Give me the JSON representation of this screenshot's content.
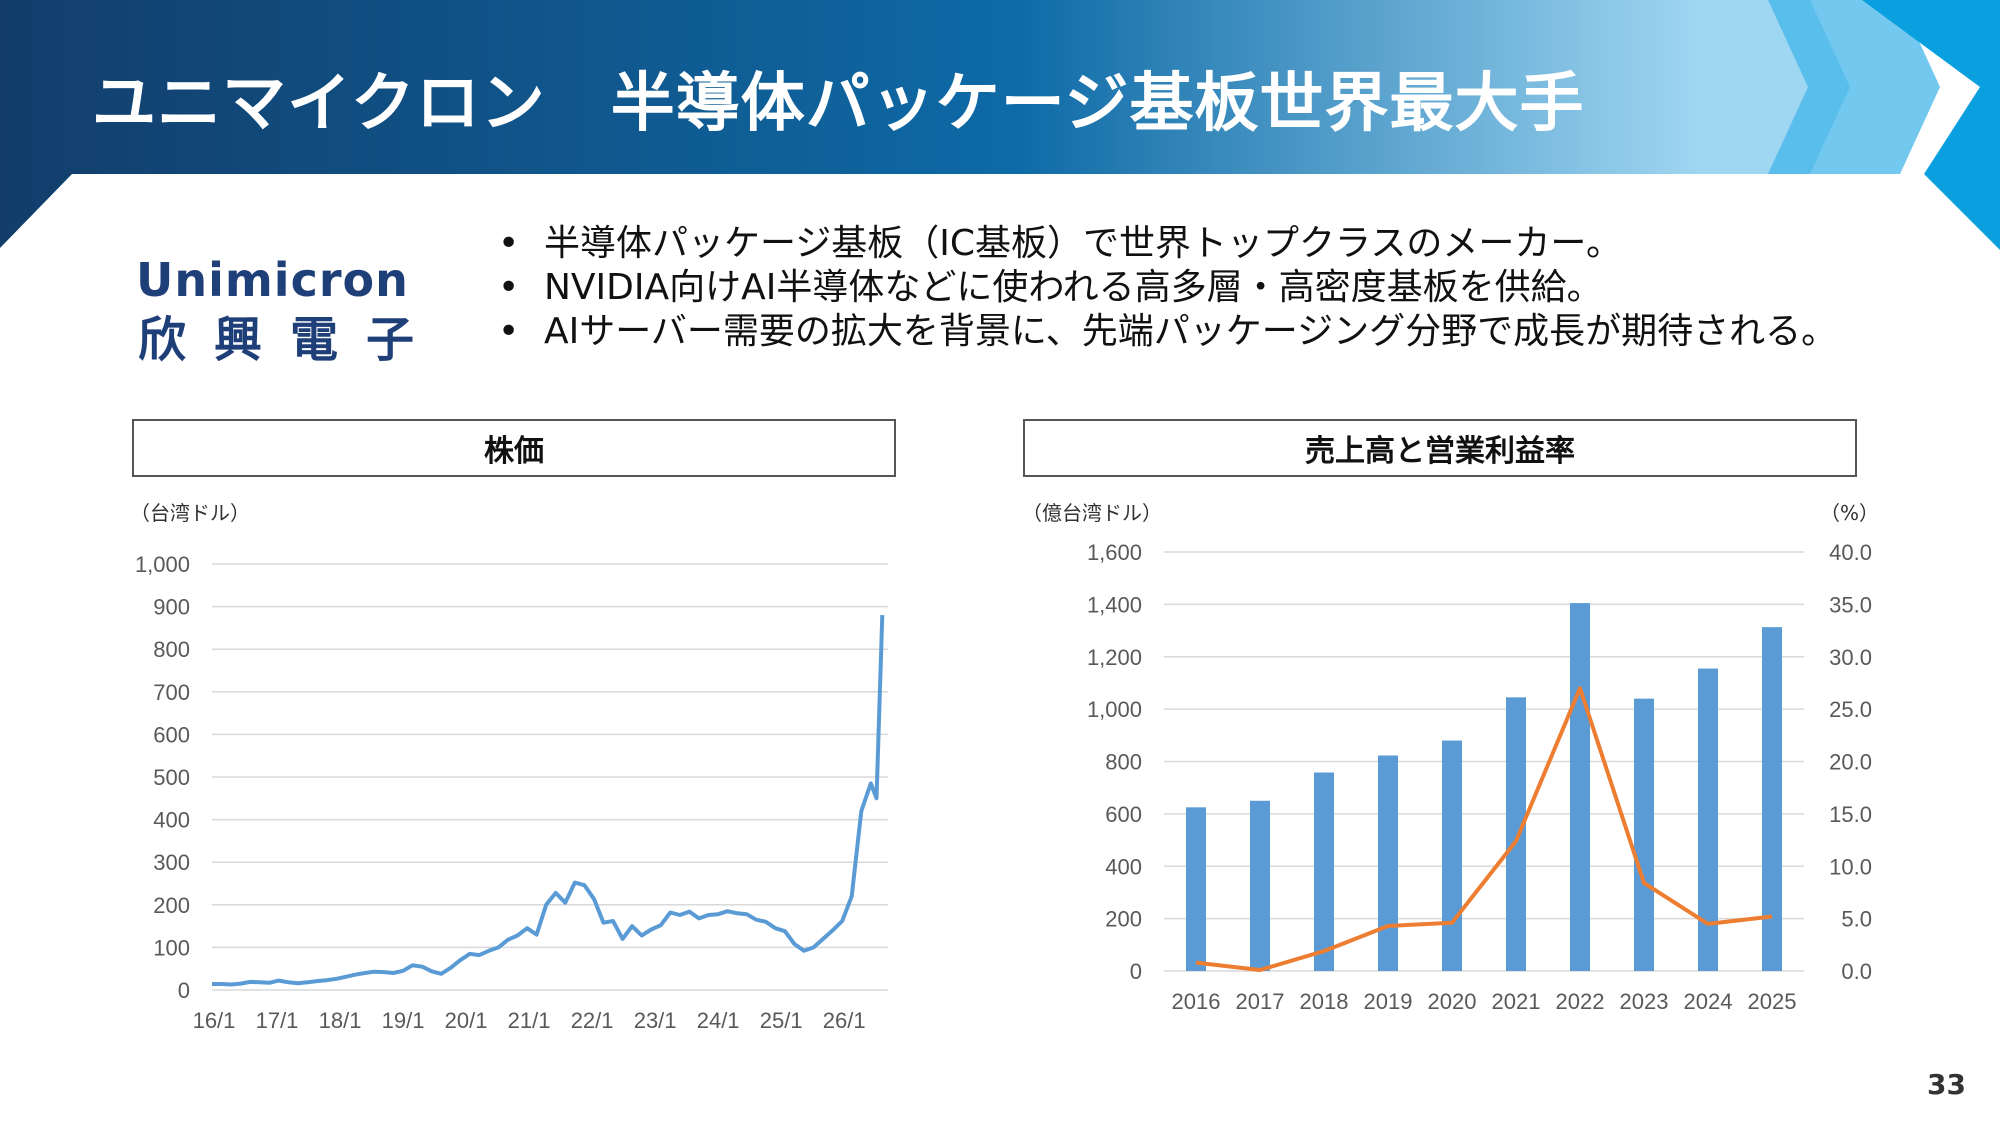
{
  "header": {
    "title": "ユニマイクロン　半導体パッケージ基板世界最大手",
    "colors": {
      "dark": "#123d6b",
      "mid": "#0e6aa6",
      "light": "#5cc3ee",
      "accent": "#0aa0e0"
    }
  },
  "logo": {
    "en": "Unimicron",
    "zh": "欣興電子",
    "color": "#1f3f79"
  },
  "bullets": [
    "半導体パッケージ基板（IC基板）で世界トップクラスのメーカー。",
    "NVIDIA向けAI半導体などに使われる高多層・高密度基板を供給。",
    "AIサーバー需要の拡大を背景に、先端パッケージング分野で成長が期待される。"
  ],
  "page_number": "33",
  "stock_panel": {
    "title": "株価",
    "unit": "（台湾ドル）"
  },
  "sales_panel": {
    "title": "売上高と営業利益率",
    "unit_left": "（億台湾ドル）",
    "unit_right": "（%）"
  },
  "chart_data": [
    {
      "type": "line",
      "title": "株価",
      "ylabel": "（台湾ドル）",
      "ylim": [
        0,
        1000
      ],
      "yticks": [
        0,
        100,
        200,
        300,
        400,
        500,
        600,
        700,
        800,
        900,
        1000
      ],
      "ytick_labels": [
        "0",
        "100",
        "200",
        "300",
        "400",
        "500",
        "600",
        "700",
        "800",
        "900",
        "1,000"
      ],
      "xticks": [
        "16/1",
        "17/1",
        "18/1",
        "19/1",
        "20/1",
        "21/1",
        "22/1",
        "23/1",
        "24/1",
        "25/1",
        "26/1"
      ],
      "grid": true,
      "color": "#5b9bd5",
      "series": [
        {
          "values": [
            [
              0,
              14
            ],
            [
              0.5,
              14
            ],
            [
              1,
              13
            ],
            [
              1.5,
              15
            ],
            [
              2,
              19
            ],
            [
              2.5,
              18
            ],
            [
              3,
              17
            ],
            [
              3.5,
              22
            ],
            [
              4,
              18
            ],
            [
              4.5,
              16
            ],
            [
              5,
              18
            ],
            [
              5.5,
              21
            ],
            [
              6,
              23
            ],
            [
              6.5,
              26
            ],
            [
              7,
              31
            ],
            [
              7.5,
              36
            ],
            [
              8,
              40
            ],
            [
              8.5,
              43
            ],
            [
              9,
              42
            ],
            [
              9.5,
              40
            ],
            [
              10,
              45
            ],
            [
              10.5,
              58
            ],
            [
              11,
              55
            ],
            [
              11.5,
              44
            ],
            [
              12,
              38
            ],
            [
              12.5,
              52
            ],
            [
              13,
              70
            ],
            [
              13.5,
              85
            ],
            [
              14,
              82
            ],
            [
              14.5,
              92
            ],
            [
              15,
              100
            ],
            [
              15.5,
              118
            ],
            [
              16,
              128
            ],
            [
              16.5,
              145
            ],
            [
              17,
              130
            ],
            [
              17.5,
              200
            ],
            [
              18,
              228
            ],
            [
              18.5,
              205
            ],
            [
              19,
              252
            ],
            [
              19.5,
              246
            ],
            [
              20,
              214
            ],
            [
              20.5,
              158
            ],
            [
              21,
              162
            ],
            [
              21.5,
              120
            ],
            [
              22,
              150
            ],
            [
              22.5,
              128
            ],
            [
              23,
              142
            ],
            [
              23.5,
              152
            ],
            [
              24,
              182
            ],
            [
              24.5,
              176
            ],
            [
              25,
              184
            ],
            [
              25.5,
              168
            ],
            [
              26,
              176
            ],
            [
              26.5,
              178
            ],
            [
              27,
              185
            ],
            [
              27.5,
              180
            ],
            [
              28,
              178
            ],
            [
              28.5,
              165
            ],
            [
              29,
              160
            ],
            [
              29.5,
              145
            ],
            [
              30,
              138
            ],
            [
              30.5,
              108
            ],
            [
              31,
              92
            ],
            [
              31.5,
              100
            ],
            [
              32,
              120
            ],
            [
              32.5,
              140
            ],
            [
              33,
              162
            ],
            [
              33.5,
              220
            ],
            [
              34,
              420
            ],
            [
              34.5,
              485
            ],
            [
              34.8,
              450
            ],
            [
              35.1,
              880
            ]
          ]
        }
      ],
      "x_range": [
        0,
        35.4
      ]
    },
    {
      "type": "bar",
      "title": "売上高と営業利益率",
      "categories": [
        "2016",
        "2017",
        "2018",
        "2019",
        "2020",
        "2021",
        "2022",
        "2023",
        "2024",
        "2025"
      ],
      "series": [
        {
          "type": "bar",
          "axis": "left",
          "color": "#5b9bd5",
          "values": [
            625,
            650,
            758,
            823,
            880,
            1045,
            1405,
            1040,
            1155,
            1313
          ]
        },
        {
          "type": "line",
          "axis": "right",
          "color": "#ed7d31",
          "values": [
            0.8,
            0.1,
            1.9,
            4.3,
            4.6,
            12.4,
            27.0,
            8.4,
            4.5,
            5.2
          ]
        }
      ],
      "ylabel": "（億台湾ドル）",
      "ylim": [
        0,
        1600
      ],
      "yticks": [
        0,
        200,
        400,
        600,
        800,
        1000,
        1200,
        1400,
        1600
      ],
      "ytick_labels": [
        "0",
        "200",
        "400",
        "600",
        "800",
        "1,000",
        "1,200",
        "1,400",
        "1,600"
      ],
      "y2label": "（%）",
      "y2lim": [
        0,
        40
      ],
      "y2ticks": [
        0,
        5,
        10,
        15,
        20,
        25,
        30,
        35,
        40
      ],
      "y2tick_labels": [
        "0.0",
        "5.0",
        "10.0",
        "15.0",
        "20.0",
        "25.0",
        "30.0",
        "35.0",
        "40.0"
      ],
      "grid": true
    }
  ]
}
